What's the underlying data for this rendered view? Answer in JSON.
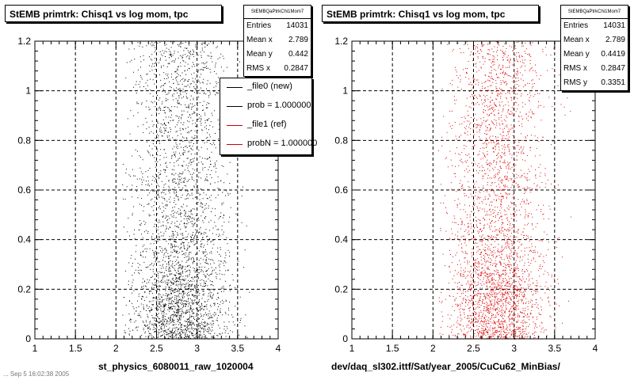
{
  "footer_text": "... Sep 5 16:02:38 2005",
  "chart_data": [
    {
      "type": "scatter",
      "title": "StEMB primtrk: Chisq1 vs log mom, tpc",
      "xlabel": "st_physics_6080011_raw_1020004",
      "ylabel": "",
      "xlim": [
        1,
        4
      ],
      "ylim": [
        0,
        1.2
      ],
      "x_ticks": [
        "1",
        "1.5",
        "2",
        "2.5",
        "3",
        "3.5",
        "4"
      ],
      "y_ticks": [
        "0",
        "0.2",
        "0.4",
        "0.6",
        "0.8",
        "1",
        "1.2"
      ],
      "grid": true,
      "marker_color": "#000000",
      "distribution": {
        "x_center": 2.789,
        "x_rms": 0.2847,
        "y_mean": 0.442,
        "entries": 14031
      },
      "stats": {
        "name": "StEMBQaPtrkChi1Mom7",
        "rows": [
          {
            "label": "Entries",
            "value": "14031"
          },
          {
            "label": "Mean x",
            "value": "2.789"
          },
          {
            "label": "Mean y",
            "value": "0.442"
          },
          {
            "label": "RMS x",
            "value": "0.2847"
          }
        ]
      },
      "legend": {
        "placement": "right",
        "entries": [
          {
            "label": "_file0 (new)",
            "color": "#000000"
          },
          {
            "label": "prob = 1.000000",
            "color": "#000000"
          },
          {
            "label": "_file1 (ref)",
            "color": "#cc0000"
          },
          {
            "label": "probN = 1.000000",
            "color": "#cc0000"
          }
        ]
      }
    },
    {
      "type": "scatter",
      "title": "StEMB primtrk: Chisq1 vs log mom, tpc",
      "xlabel": "dev/daq_sl302.ittf/Sat/year_2005/CuCu62_MinBias/",
      "ylabel": "",
      "xlim": [
        1,
        4
      ],
      "ylim": [
        0,
        1.2
      ],
      "x_ticks": [
        "1",
        "1.5",
        "2",
        "2.5",
        "3",
        "3.5",
        "4"
      ],
      "y_ticks": [
        "0",
        "0.2",
        "0.4",
        "0.6",
        "0.8",
        "1",
        "1.2"
      ],
      "grid": true,
      "marker_color": "#dd0000",
      "distribution": {
        "x_center": 2.789,
        "x_rms": 0.2847,
        "y_mean": 0.4419,
        "entries": 14031
      },
      "stats": {
        "name": "StEMBQaPtrkChi1Mom7",
        "rows": [
          {
            "label": "Entries",
            "value": "14031"
          },
          {
            "label": "Mean x",
            "value": "2.789"
          },
          {
            "label": "Mean y",
            "value": "0.4419"
          },
          {
            "label": "RMS x",
            "value": "0.2847"
          },
          {
            "label": "RMS y",
            "value": "0.3351"
          }
        ]
      }
    }
  ]
}
